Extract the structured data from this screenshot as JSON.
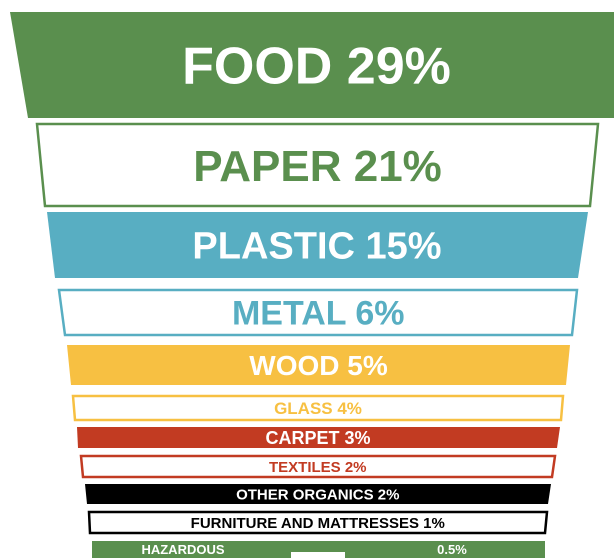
{
  "chart_data": {
    "type": "bar",
    "title": "",
    "categories": [
      "FOOD",
      "PAPER",
      "PLASTIC",
      "METAL",
      "WOOD",
      "GLASS",
      "CARPET",
      "TEXTILES",
      "OTHER ORGANICS",
      "FURNITURE AND MATTRESSES",
      "HAZARDOUS"
    ],
    "values": [
      29,
      21,
      15,
      6,
      5,
      4,
      3,
      2,
      2,
      1,
      0.5
    ],
    "labels": [
      "FOOD 29%",
      "PAPER 21%",
      "PLASTIC 15%",
      "METAL 6%",
      "WOOD 5%",
      "GLASS 4%",
      "CARPET 3%",
      "TEXTILES 2%",
      "OTHER ORGANICS 2%",
      "FURNITURE AND MATTRESSES 1%",
      "HAZARDOUS"
    ],
    "extra_labels": [
      "0.5%"
    ],
    "colors": {
      "FOOD": "#5a8f4e",
      "PAPER": "#5a8f4e",
      "PLASTIC": "#58aec2",
      "METAL": "#58aec2",
      "WOOD": "#f7c042",
      "GLASS": "#f7c042",
      "CARPET": "#c23b22",
      "TEXTILES": "#c23b22",
      "OTHER ORGANICS": "#000000",
      "FURNITURE AND MATTRESSES": "#000000",
      "HAZARDOUS": "#5a8f4e"
    },
    "styles": [
      "filled",
      "outlined",
      "filled",
      "outlined",
      "filled",
      "outlined",
      "filled",
      "outlined",
      "filled",
      "outlined",
      "filled"
    ]
  }
}
